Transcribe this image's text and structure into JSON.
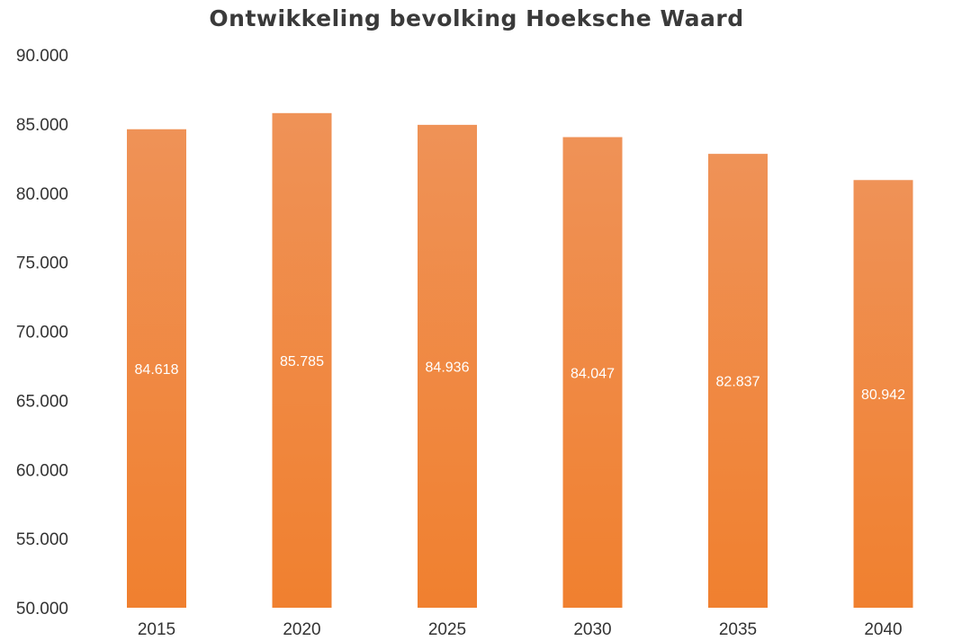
{
  "chart_data": {
    "type": "bar",
    "title": "Ontwikkeling  bevolking Hoeksche Waard",
    "xlabel": "",
    "ylabel": "",
    "categories": [
      "2015",
      "2020",
      "2025",
      "2030",
      "2035",
      "2040"
    ],
    "values": [
      84618,
      85785,
      84936,
      84047,
      82837,
      80942
    ],
    "data_labels": [
      "84.618",
      "85.785",
      "84.936",
      "84.047",
      "82.837",
      "80.942"
    ],
    "ylim": [
      50000,
      90000
    ],
    "y_ticks": [
      50000,
      55000,
      60000,
      65000,
      70000,
      75000,
      80000,
      85000,
      90000
    ],
    "y_tick_labels": [
      "50.000",
      "55.000",
      "60.000",
      "65.000",
      "70.000",
      "75.000",
      "80.000",
      "85.000",
      "90.000"
    ],
    "grid": false,
    "legend": "none",
    "colors": {
      "bar_top": "#ef9257",
      "bar_bottom": "#f0802f",
      "label_text": "#ffffff"
    }
  }
}
